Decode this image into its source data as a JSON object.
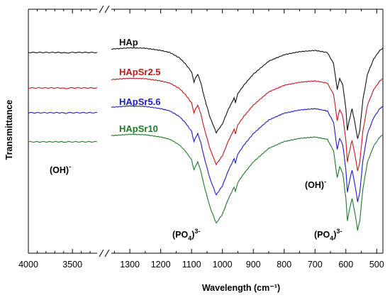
{
  "chart_data": {
    "type": "line",
    "title": "",
    "xlabel": "Wavelength (cm⁻¹)",
    "ylabel": "Transmittance",
    "x_ticks_left": [
      "4000",
      "3500"
    ],
    "x_ticks_right": [
      "1300",
      "1200",
      "1100",
      "1000",
      "900",
      "800",
      "700",
      "600",
      "500"
    ],
    "xlim_left": [
      4000,
      3220
    ],
    "xlim_right": [
      1360,
      480
    ],
    "axis_break": true,
    "grid": false,
    "series": [
      {
        "name": "HAp",
        "color": "#111111",
        "left": [
          [
            4000,
            0.0
          ],
          [
            3800,
            0.0
          ],
          [
            3650,
            0.0
          ],
          [
            3620,
            -0.04
          ],
          [
            3572,
            -0.09
          ],
          [
            3545,
            -0.02
          ],
          [
            3500,
            0.0
          ],
          [
            3400,
            0.01
          ],
          [
            3220,
            -0.01
          ]
        ],
        "right": [
          [
            1360,
            -0.02
          ],
          [
            1300,
            0.01
          ],
          [
            1250,
            0.0
          ],
          [
            1200,
            -0.05
          ],
          [
            1170,
            -0.1
          ],
          [
            1140,
            -0.22
          ],
          [
            1120,
            -0.36
          ],
          [
            1100,
            -0.55
          ],
          [
            1092,
            -0.78
          ],
          [
            1088,
            -0.7
          ],
          [
            1080,
            -0.6
          ],
          [
            1070,
            -0.8
          ],
          [
            1060,
            -1.1
          ],
          [
            1040,
            -1.6
          ],
          [
            1020,
            -1.95
          ],
          [
            1000,
            -1.75
          ],
          [
            980,
            -1.4
          ],
          [
            962,
            -1.15
          ],
          [
            958,
            -1.25
          ],
          [
            950,
            -1.05
          ],
          [
            930,
            -0.85
          ],
          [
            900,
            -0.6
          ],
          [
            850,
            -0.3
          ],
          [
            800,
            -0.15
          ],
          [
            750,
            -0.08
          ],
          [
            700,
            -0.05
          ],
          [
            660,
            -0.1
          ],
          [
            640,
            -0.35
          ],
          [
            632,
            -0.75
          ],
          [
            628,
            -0.95
          ],
          [
            620,
            -0.7
          ],
          [
            610,
            -0.85
          ],
          [
            600,
            -1.4
          ],
          [
            595,
            -1.9
          ],
          [
            590,
            -1.7
          ],
          [
            580,
            -1.4
          ],
          [
            570,
            -1.75
          ],
          [
            562,
            -2.1
          ],
          [
            555,
            -1.9
          ],
          [
            545,
            -1.2
          ],
          [
            530,
            -0.6
          ],
          [
            510,
            -0.25
          ],
          [
            490,
            -0.05
          ],
          [
            480,
            0.0
          ]
        ]
      },
      {
        "name": "HApSr2.5",
        "color": "#c01818",
        "left": [
          [
            4000,
            0.0
          ],
          [
            3800,
            0.0
          ],
          [
            3650,
            0.0
          ],
          [
            3620,
            -0.04
          ],
          [
            3572,
            -0.09
          ],
          [
            3545,
            -0.02
          ],
          [
            3500,
            0.0
          ],
          [
            3400,
            0.01
          ],
          [
            3220,
            -0.01
          ]
        ],
        "right": [
          [
            1360,
            -0.02
          ],
          [
            1300,
            0.01
          ],
          [
            1250,
            0.0
          ],
          [
            1200,
            -0.05
          ],
          [
            1170,
            -0.1
          ],
          [
            1140,
            -0.22
          ],
          [
            1120,
            -0.36
          ],
          [
            1100,
            -0.55
          ],
          [
            1092,
            -0.78
          ],
          [
            1088,
            -0.7
          ],
          [
            1080,
            -0.6
          ],
          [
            1070,
            -0.8
          ],
          [
            1060,
            -1.1
          ],
          [
            1040,
            -1.6
          ],
          [
            1020,
            -1.95
          ],
          [
            1000,
            -1.75
          ],
          [
            980,
            -1.4
          ],
          [
            962,
            -1.15
          ],
          [
            958,
            -1.25
          ],
          [
            950,
            -1.05
          ],
          [
            930,
            -0.85
          ],
          [
            900,
            -0.6
          ],
          [
            850,
            -0.3
          ],
          [
            800,
            -0.15
          ],
          [
            750,
            -0.08
          ],
          [
            700,
            -0.05
          ],
          [
            660,
            -0.1
          ],
          [
            640,
            -0.35
          ],
          [
            632,
            -0.75
          ],
          [
            628,
            -0.95
          ],
          [
            620,
            -0.7
          ],
          [
            610,
            -0.85
          ],
          [
            600,
            -1.4
          ],
          [
            595,
            -1.9
          ],
          [
            590,
            -1.7
          ],
          [
            580,
            -1.4
          ],
          [
            570,
            -1.75
          ],
          [
            562,
            -2.1
          ],
          [
            555,
            -1.9
          ],
          [
            545,
            -1.2
          ],
          [
            530,
            -0.6
          ],
          [
            510,
            -0.25
          ],
          [
            490,
            -0.05
          ],
          [
            480,
            0.0
          ]
        ]
      },
      {
        "name": "HApSr5.6",
        "color": "#1c1cc4",
        "left": [
          [
            4000,
            0.0
          ],
          [
            3800,
            0.0
          ],
          [
            3650,
            0.01
          ],
          [
            3600,
            -0.02
          ],
          [
            3572,
            -0.04
          ],
          [
            3545,
            0.0
          ],
          [
            3400,
            0.0
          ],
          [
            3220,
            0.01
          ]
        ],
        "right": [
          [
            1360,
            -0.02
          ],
          [
            1300,
            0.01
          ],
          [
            1250,
            0.0
          ],
          [
            1200,
            -0.05
          ],
          [
            1170,
            -0.1
          ],
          [
            1140,
            -0.22
          ],
          [
            1120,
            -0.36
          ],
          [
            1100,
            -0.55
          ],
          [
            1092,
            -0.78
          ],
          [
            1088,
            -0.7
          ],
          [
            1080,
            -0.6
          ],
          [
            1070,
            -0.8
          ],
          [
            1060,
            -1.1
          ],
          [
            1040,
            -1.6
          ],
          [
            1020,
            -1.95
          ],
          [
            1000,
            -1.75
          ],
          [
            980,
            -1.4
          ],
          [
            962,
            -1.15
          ],
          [
            958,
            -1.25
          ],
          [
            950,
            -1.05
          ],
          [
            930,
            -0.85
          ],
          [
            900,
            -0.6
          ],
          [
            850,
            -0.3
          ],
          [
            800,
            -0.15
          ],
          [
            750,
            -0.08
          ],
          [
            700,
            -0.05
          ],
          [
            660,
            -0.1
          ],
          [
            640,
            -0.35
          ],
          [
            632,
            -0.75
          ],
          [
            628,
            -0.95
          ],
          [
            620,
            -0.7
          ],
          [
            610,
            -0.85
          ],
          [
            600,
            -1.4
          ],
          [
            595,
            -1.9
          ],
          [
            590,
            -1.7
          ],
          [
            580,
            -1.4
          ],
          [
            570,
            -1.75
          ],
          [
            562,
            -2.1
          ],
          [
            555,
            -1.9
          ],
          [
            545,
            -1.2
          ],
          [
            530,
            -0.6
          ],
          [
            510,
            -0.25
          ],
          [
            490,
            -0.05
          ],
          [
            480,
            0.0
          ]
        ]
      },
      {
        "name": "HApSr10",
        "color": "#1e7a2a",
        "left": [
          [
            4000,
            0.0
          ],
          [
            3800,
            0.0
          ],
          [
            3650,
            0.01
          ],
          [
            3600,
            -0.01
          ],
          [
            3572,
            -0.02
          ],
          [
            3545,
            0.0
          ],
          [
            3400,
            0.0
          ],
          [
            3220,
            0.01
          ]
        ],
        "right": [
          [
            1360,
            -0.02
          ],
          [
            1300,
            0.01
          ],
          [
            1250,
            0.0
          ],
          [
            1200,
            -0.05
          ],
          [
            1170,
            -0.1
          ],
          [
            1140,
            -0.22
          ],
          [
            1120,
            -0.36
          ],
          [
            1100,
            -0.55
          ],
          [
            1092,
            -0.78
          ],
          [
            1088,
            -0.7
          ],
          [
            1080,
            -0.6
          ],
          [
            1070,
            -0.8
          ],
          [
            1060,
            -1.1
          ],
          [
            1040,
            -1.6
          ],
          [
            1020,
            -1.95
          ],
          [
            1000,
            -1.75
          ],
          [
            980,
            -1.4
          ],
          [
            962,
            -1.15
          ],
          [
            958,
            -1.25
          ],
          [
            950,
            -1.05
          ],
          [
            930,
            -0.85
          ],
          [
            900,
            -0.6
          ],
          [
            850,
            -0.3
          ],
          [
            800,
            -0.15
          ],
          [
            750,
            -0.08
          ],
          [
            700,
            -0.05
          ],
          [
            660,
            -0.1
          ],
          [
            640,
            -0.35
          ],
          [
            632,
            -0.75
          ],
          [
            628,
            -0.95
          ],
          [
            620,
            -0.7
          ],
          [
            610,
            -0.85
          ],
          [
            600,
            -1.4
          ],
          [
            595,
            -1.9
          ],
          [
            590,
            -1.7
          ],
          [
            580,
            -1.4
          ],
          [
            570,
            -1.75
          ],
          [
            562,
            -2.1
          ],
          [
            555,
            -1.9
          ],
          [
            545,
            -1.2
          ],
          [
            530,
            -0.6
          ],
          [
            510,
            -0.25
          ],
          [
            490,
            -0.05
          ],
          [
            480,
            0.0
          ]
        ]
      }
    ],
    "annotations": [
      {
        "text": "(OH)",
        "sup": "-",
        "panel": "left",
        "x": 3620
      },
      {
        "text": "(OH)",
        "sup": "-",
        "panel": "right",
        "x": 660
      },
      {
        "text": "(PO",
        "sub": "4",
        "tail": ")",
        "sup": "3-",
        "panel": "right",
        "x": 1050
      },
      {
        "text": "(PO",
        "sub": "4",
        "tail": ")",
        "sup": "3-",
        "panel": "right",
        "x": 590
      }
    ]
  }
}
